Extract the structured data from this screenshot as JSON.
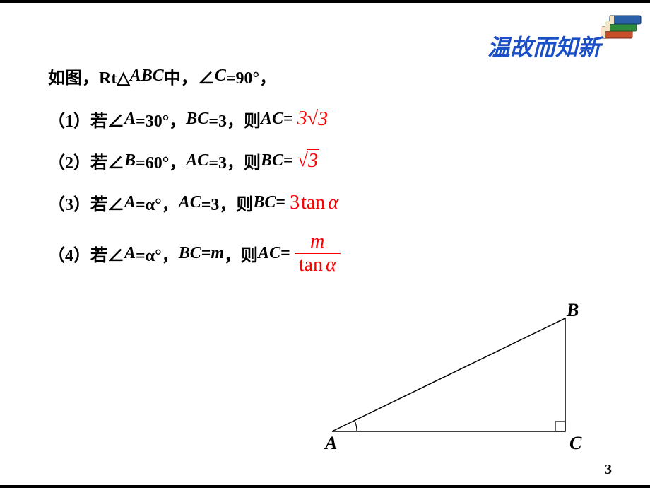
{
  "header": {
    "title": "温故而知新",
    "title_color": "#1a4fc5",
    "title_fontsize": 32
  },
  "lead": {
    "prefix": "如图，Rt△",
    "triangle_name": "ABC",
    "middle": "中，∠",
    "angle_label": "C",
    "equals": "=90°，",
    "fontsize": 24
  },
  "questions": [
    {
      "label": "（1）若∠",
      "angle": "A",
      "angle_eq": "=30°，",
      "seg": "BC",
      "seg_eq": "=3，则",
      "ask": "AC",
      "ask_eq": "=",
      "answer_type": "sqrt_mul",
      "answer_coef": "3",
      "answer_rad": "3"
    },
    {
      "label": "（2）若∠",
      "angle": "B",
      "angle_eq": "=60°，",
      "seg": "AC",
      "seg_eq": "=3，则",
      "ask": "BC",
      "ask_eq": "=",
      "answer_type": "sqrt",
      "answer_rad": "3"
    },
    {
      "label": "（3）若∠",
      "angle": "A",
      "angle_eq": "=α°，",
      "seg": "AC",
      "seg_eq": "=3，则",
      "ask": "BC",
      "ask_eq": "=",
      "answer_type": "expr",
      "answer_expr_pre": "3",
      "answer_expr_fn": "tan",
      "answer_expr_arg": "α"
    },
    {
      "label": "（4）若∠",
      "angle": "A",
      "angle_eq": "=α°，",
      "seg": "BC",
      "seg_eq": "=",
      "seg_val": "m",
      "seg_post": "，则",
      "ask": "AC",
      "ask_eq": "=",
      "answer_type": "frac",
      "answer_num": "m",
      "answer_den_fn": "tan",
      "answer_den_arg": "α"
    }
  ],
  "answer_color": "#ff0000",
  "triangle": {
    "A": "A",
    "B": "B",
    "C": "C",
    "label_fontsize": 26,
    "stroke": "#000000",
    "stroke_width": 1.5
  },
  "page_number": "3",
  "page_number_fontsize": 20
}
